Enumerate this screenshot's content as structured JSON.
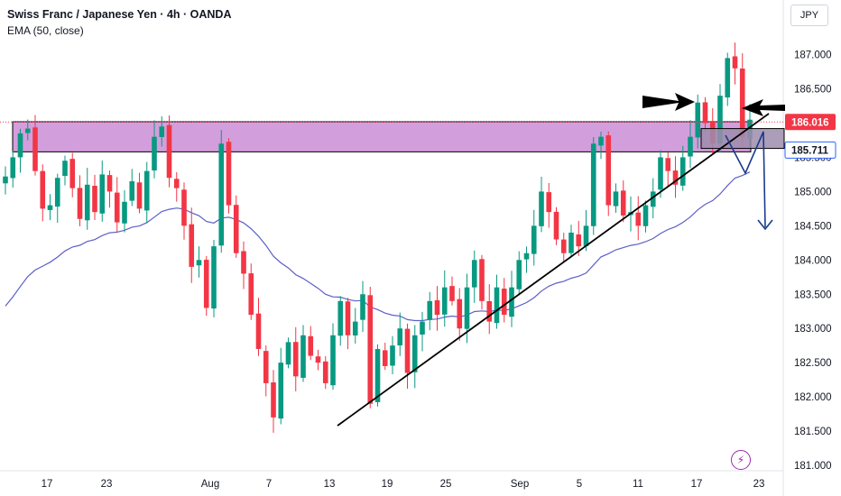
{
  "header": {
    "title": "Swiss Franc / Japanese Yen · 4h · OANDA",
    "indicator": "EMA (50, close)",
    "currency": "JPY"
  },
  "chart_data": {
    "type": "candlestick",
    "ylim": [
      180.9,
      187.45
    ],
    "yticks": [
      "187.000",
      "186.500",
      "186.000",
      "185.500",
      "185.000",
      "184.500",
      "184.000",
      "183.500",
      "183.000",
      "182.500",
      "182.000",
      "181.500",
      "181.000"
    ],
    "ytick_values": [
      187.0,
      186.5,
      186.0,
      185.5,
      185.0,
      184.5,
      184.0,
      183.5,
      183.0,
      182.5,
      182.0,
      181.5,
      181.0
    ],
    "xticks": [
      {
        "label": "17",
        "i": 6
      },
      {
        "label": "23",
        "i": 14
      },
      {
        "label": "Aug",
        "i": 28
      },
      {
        "label": "7",
        "i": 37
      },
      {
        "label": "13",
        "i": 45
      },
      {
        "label": "19",
        "i": 53
      },
      {
        "label": "25",
        "i": 61
      },
      {
        "label": "Sep",
        "i": 71
      },
      {
        "label": "5",
        "i": 80
      },
      {
        "label": "11",
        "i": 87
      },
      {
        "label": "17",
        "i": 95
      },
      {
        "label": "23",
        "i": 103
      }
    ],
    "n_slots": 114,
    "closes": [
      185.22,
      185.5,
      185.85,
      185.92,
      185.3,
      184.75,
      184.8,
      185.2,
      185.45,
      185.05,
      184.6,
      185.1,
      184.7,
      185.25,
      185.0,
      184.55,
      184.85,
      185.15,
      184.75,
      185.3,
      185.8,
      185.95,
      185.2,
      185.05,
      184.5,
      183.9,
      184.0,
      183.3,
      184.2,
      185.7,
      184.8,
      184.1,
      183.8,
      183.2,
      182.7,
      182.2,
      181.7,
      182.5,
      182.8,
      182.3,
      182.9,
      182.6,
      182.5,
      182.2,
      182.9,
      183.4,
      182.9,
      183.1,
      183.5,
      181.9,
      182.7,
      182.45,
      182.75,
      183.0,
      182.35,
      182.9,
      183.1,
      183.4,
      183.2,
      183.6,
      183.4,
      183.0,
      183.6,
      184.0,
      183.4,
      183.1,
      183.6,
      183.2,
      183.6,
      184.0,
      184.1,
      184.5,
      185.0,
      184.7,
      184.3,
      184.1,
      184.4,
      184.2,
      184.5,
      185.7,
      185.8,
      184.8,
      185.0,
      184.65,
      184.7,
      184.5,
      184.8,
      185.0,
      185.5,
      185.3,
      185.1,
      185.5,
      185.8,
      186.3,
      186.0,
      185.7,
      186.4,
      186.95,
      186.8,
      185.8,
      186.05
    ],
    "levels": {
      "upper": "186.016",
      "lower": "185.711",
      "upper_value": 186.016,
      "lower_value": 185.711
    },
    "zone": {
      "top": 186.02,
      "bottom": 185.58,
      "start_i": 0,
      "end_i": 101
    },
    "box": {
      "top": 185.92,
      "bottom": 185.63,
      "start_i": 94,
      "end_i": 105
    },
    "trendline": {
      "start": {
        "i": 46,
        "v": 181.58
      },
      "end": {
        "i": 105,
        "v": 185.98
      }
    },
    "colors": {
      "up": "#089981",
      "down": "#f23645",
      "ema": "#5b5fc7",
      "zone": "#ce93d8",
      "box": "#9e8cad",
      "tag_up": "#f23645",
      "tag_low": "#2962ff",
      "arrow": "#1a3a8c"
    }
  },
  "misc": {
    "bolt_icon": "⚡"
  }
}
